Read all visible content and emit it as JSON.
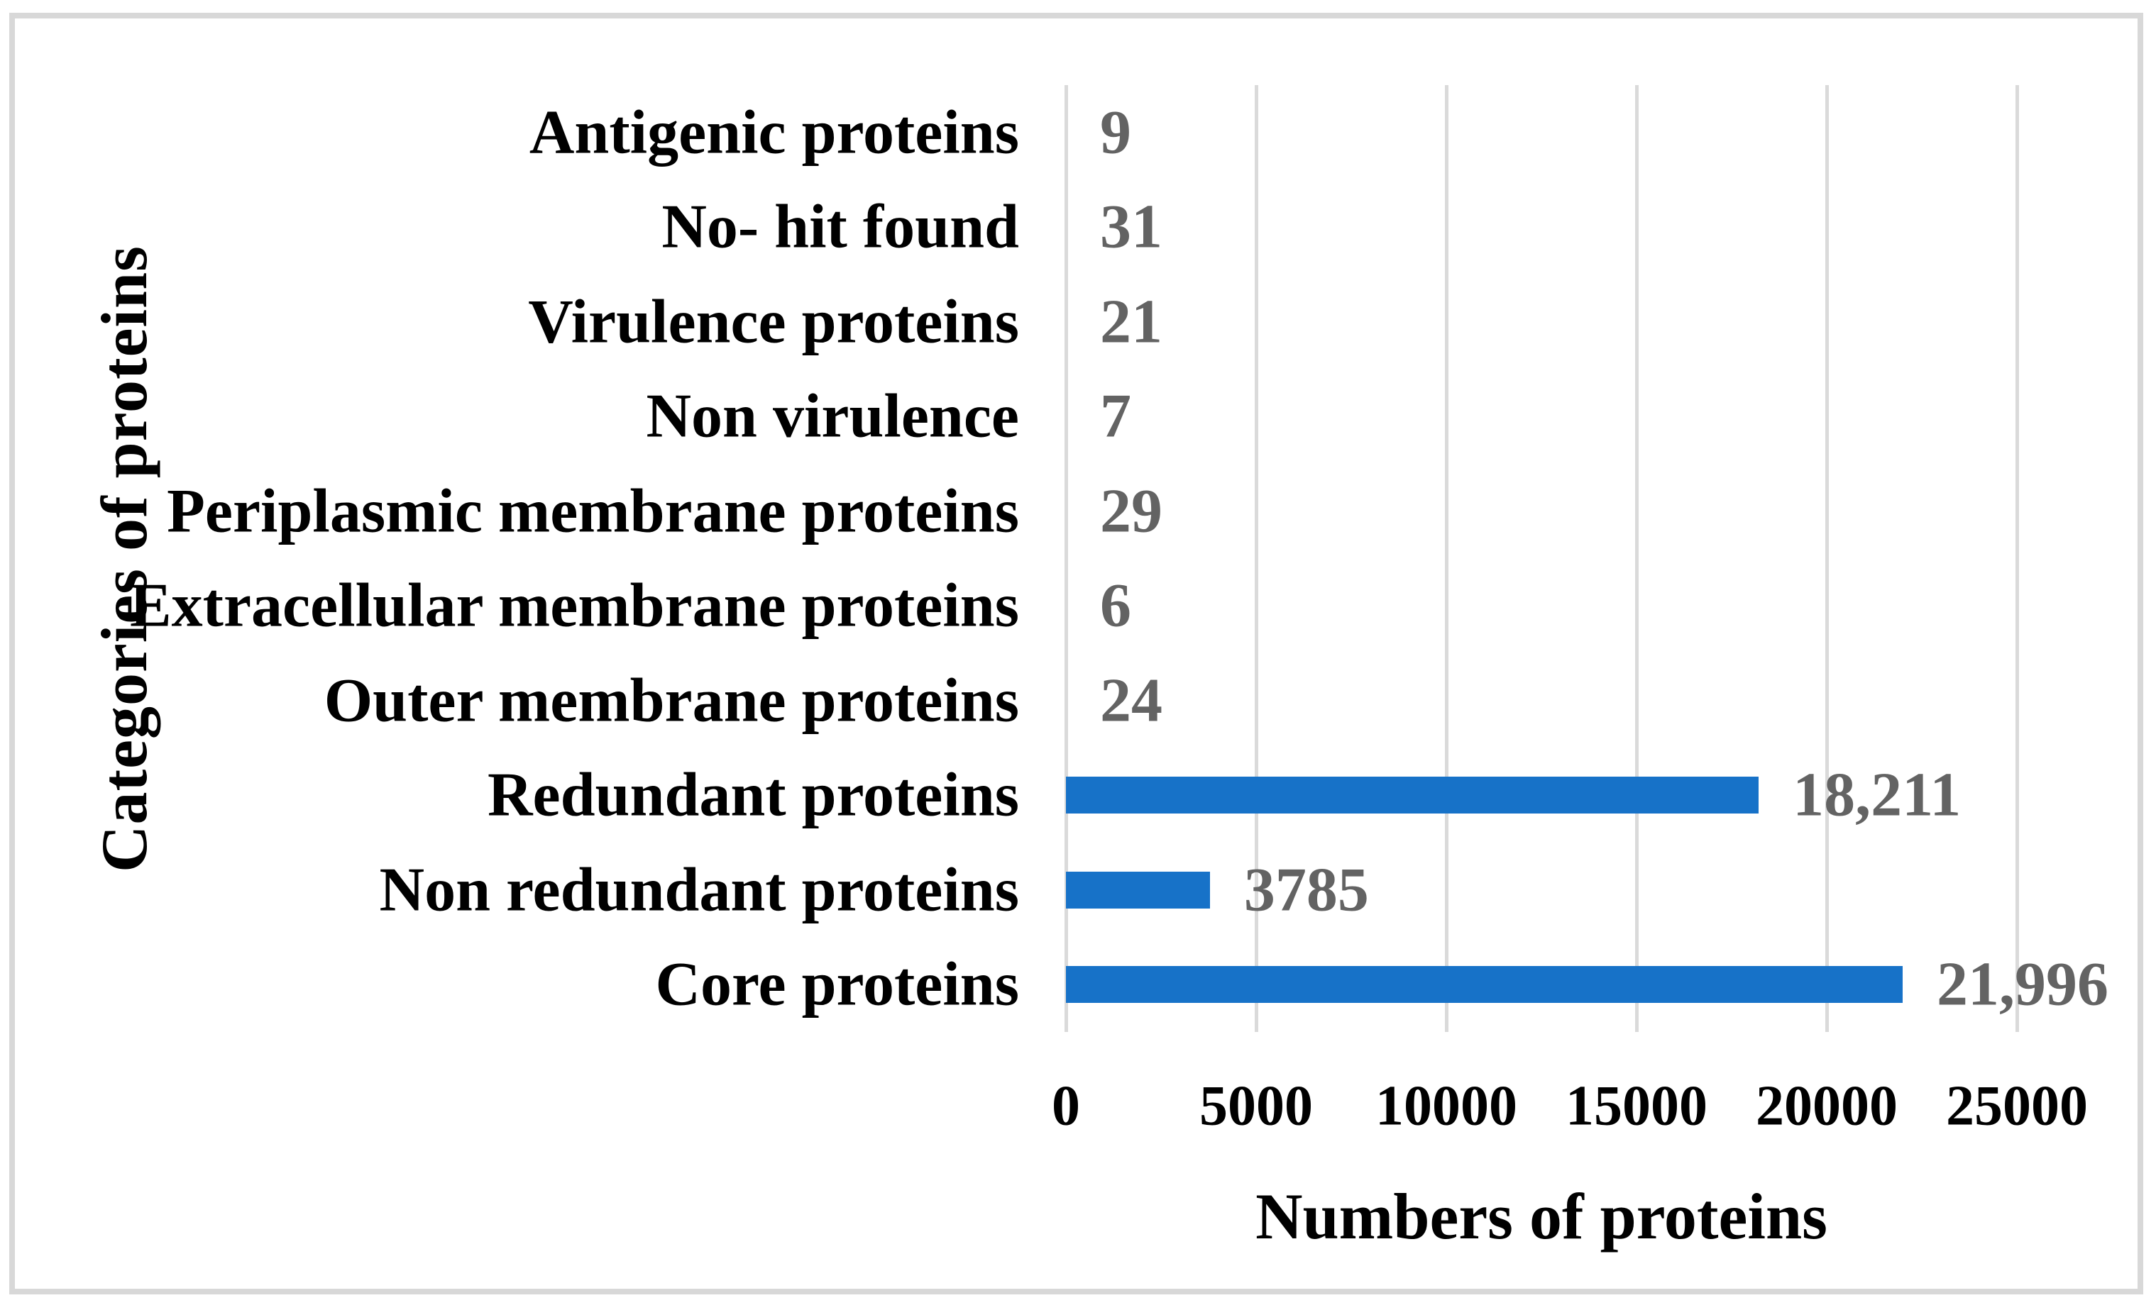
{
  "chart_data": {
    "type": "bar",
    "orientation": "horizontal",
    "xlabel": "Numbers of proteins",
    "ylabel": "Categories of proteins",
    "xlim": [
      0,
      25000
    ],
    "x_ticks": [
      0,
      5000,
      10000,
      15000,
      20000,
      25000
    ],
    "x_tick_labels": [
      "0",
      "5000",
      "10000",
      "15000",
      "20000",
      "25000"
    ],
    "grid": true,
    "legend": "none",
    "categories": [
      "Antigenic proteins",
      "No- hit found",
      "Virulence proteins",
      "Non virulence",
      "Periplasmic membrane proteins",
      "Extracellular membrane proteins",
      "Outer membrane proteins",
      "Redundant proteins",
      "Non redundant proteins",
      "Core proteins"
    ],
    "values": [
      9,
      31,
      21,
      7,
      29,
      6,
      24,
      18211,
      3785,
      21996
    ],
    "value_labels": [
      "9",
      "31",
      "21",
      "7",
      "29",
      "6",
      "24",
      "18,211",
      "3785",
      "21,996"
    ],
    "colors": {
      "bar": "#1772c8",
      "value_label": "#636363",
      "gridline": "#dadada",
      "text": "#000000",
      "frame_border": "#d8d8d8",
      "background": "#ffffff"
    }
  }
}
